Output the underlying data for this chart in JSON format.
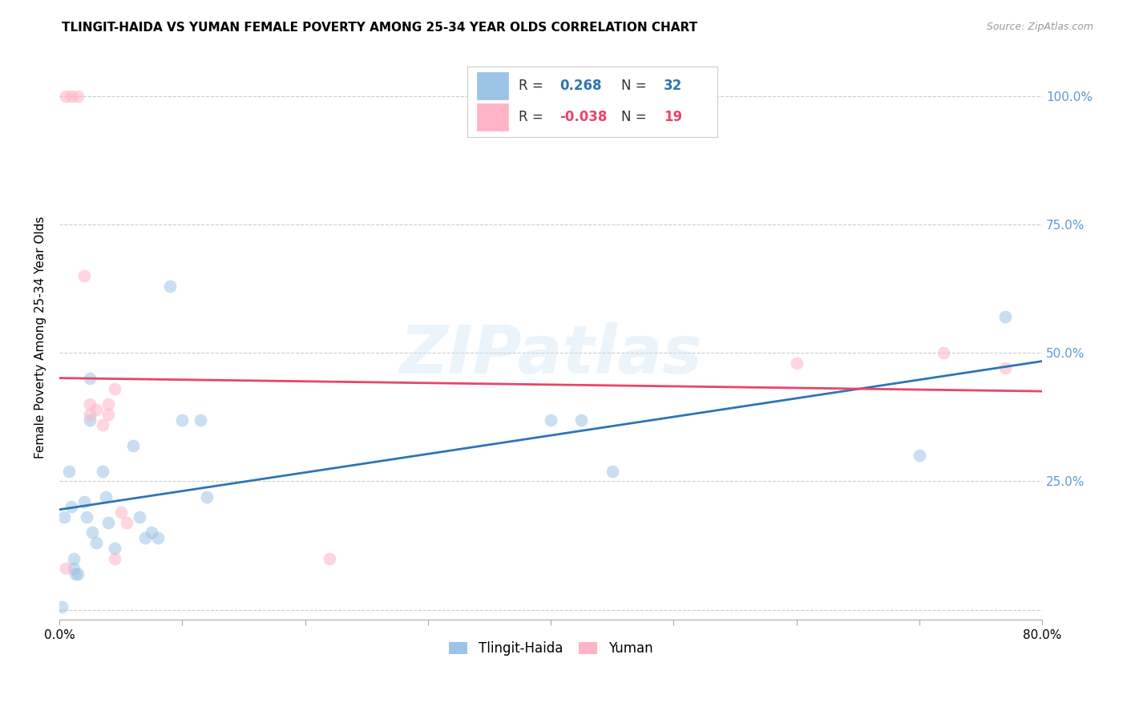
{
  "title": "TLINGIT-HAIDA VS YUMAN FEMALE POVERTY AMONG 25-34 YEAR OLDS CORRELATION CHART",
  "source": "Source: ZipAtlas.com",
  "ylabel": "Female Poverty Among 25-34 Year Olds",
  "xlim": [
    0.0,
    0.8
  ],
  "ylim": [
    -0.02,
    1.08
  ],
  "xticks": [
    0.0,
    0.1,
    0.2,
    0.3,
    0.4,
    0.5,
    0.6,
    0.7,
    0.8
  ],
  "xticklabels": [
    "0.0%",
    "",
    "",
    "",
    "",
    "",
    "",
    "",
    "80.0%"
  ],
  "yticks": [
    0.0,
    0.25,
    0.5,
    0.75,
    1.0
  ],
  "yticklabels_right": [
    "",
    "25.0%",
    "50.0%",
    "75.0%",
    "100.0%"
  ],
  "right_ytick_color": "#5b9bd5",
  "tlingit_color": "#9dc3e6",
  "yuman_color": "#ffb3c6",
  "tlingit_line_color": "#2e75b6",
  "yuman_line_color": "#e8456a",
  "tlingit_R": 0.268,
  "tlingit_N": 32,
  "yuman_R": -0.038,
  "yuman_N": 19,
  "tlingit_x": [
    0.002,
    0.004,
    0.008,
    0.01,
    0.012,
    0.012,
    0.013,
    0.015,
    0.02,
    0.022,
    0.025,
    0.025,
    0.027,
    0.03,
    0.035,
    0.038,
    0.04,
    0.045,
    0.06,
    0.065,
    0.07,
    0.075,
    0.08,
    0.09,
    0.1,
    0.115,
    0.12,
    0.4,
    0.425,
    0.45,
    0.7,
    0.77
  ],
  "tlingit_y": [
    0.005,
    0.18,
    0.27,
    0.2,
    0.1,
    0.08,
    0.07,
    0.07,
    0.21,
    0.18,
    0.45,
    0.37,
    0.15,
    0.13,
    0.27,
    0.22,
    0.17,
    0.12,
    0.32,
    0.18,
    0.14,
    0.15,
    0.14,
    0.63,
    0.37,
    0.37,
    0.22,
    0.37,
    0.37,
    0.27,
    0.3,
    0.57
  ],
  "yuman_x": [
    0.005,
    0.01,
    0.015,
    0.02,
    0.025,
    0.025,
    0.03,
    0.035,
    0.04,
    0.04,
    0.045,
    0.045,
    0.05,
    0.055,
    0.22,
    0.6,
    0.72,
    0.77,
    0.005
  ],
  "yuman_y": [
    1.0,
    1.0,
    1.0,
    0.65,
    0.4,
    0.38,
    0.39,
    0.36,
    0.4,
    0.38,
    0.43,
    0.1,
    0.19,
    0.17,
    0.1,
    0.48,
    0.5,
    0.47,
    0.08
  ],
  "watermark": "ZIPatlas",
  "marker_size": 130,
  "marker_alpha": 0.55,
  "grid_color": "#cccccc",
  "bg_color": "#ffffff"
}
